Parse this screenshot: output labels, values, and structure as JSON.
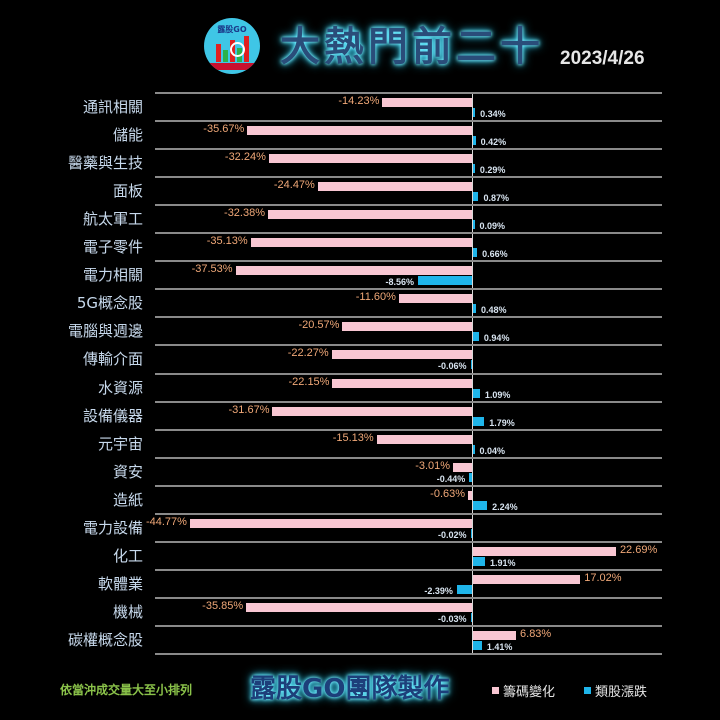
{
  "header": {
    "logo_text": "露股GO",
    "title": "大熱門前二十",
    "date": "2023/4/26"
  },
  "footer": {
    "note": "依當沖成交量大至小排列",
    "team": "露股GO團隊製作"
  },
  "legend": [
    {
      "label": "籌碼變化",
      "color": "#f8c6d2"
    },
    {
      "label": "類股漲跌",
      "color": "#1fb5ea"
    }
  ],
  "colors": {
    "background": "#000000",
    "chip_change": "#f8c6d2",
    "sector_change": "#1fb5ea",
    "chip_label": "#f0a878",
    "category_label": "#c7d9ec",
    "title_glow": "#4fe3ff"
  },
  "chart_data": {
    "type": "bar",
    "orientation": "horizontal",
    "title": "大熱門前二十",
    "subtitle": "2023/4/26",
    "xlabel": "",
    "ylabel": "",
    "xlim": [
      -45,
      30
    ],
    "grid": true,
    "legend_position": "bottom-right",
    "categories": [
      "通訊相關",
      "儲能",
      "醫藥與生技",
      "面板",
      "航太軍工",
      "電子零件",
      "電力相關",
      "5G概念股",
      "電腦與週邊",
      "傳輸介面",
      "水資源",
      "設備儀器",
      "元宇宙",
      "資安",
      "造紙",
      "電力設備",
      "化工",
      "軟體業",
      "機械",
      "碳權概念股"
    ],
    "series": [
      {
        "name": "籌碼變化",
        "values": [
          -14.23,
          -35.67,
          -32.24,
          -24.47,
          -32.38,
          -35.13,
          -37.53,
          -11.6,
          -20.57,
          -22.27,
          -22.15,
          -31.67,
          -15.13,
          -3.01,
          -0.63,
          -44.77,
          22.69,
          17.02,
          -35.85,
          6.83
        ],
        "labels": [
          "-14.23%",
          "-35.67%",
          "-32.24%",
          "-24.47%",
          "-32.38%",
          "-35.13%",
          "-37.53%",
          "-11.60%",
          "-20.57%",
          "-22.27%",
          "-22.15%",
          "-31.67%",
          "-15.13%",
          "-3.01%",
          "-0.63%",
          "-44.77%",
          "22.69%",
          "17.02%",
          "-35.85%",
          "6.83%"
        ]
      },
      {
        "name": "類股漲跌",
        "values": [
          0.34,
          0.42,
          0.29,
          0.87,
          0.09,
          0.66,
          -8.56,
          0.48,
          0.94,
          -0.06,
          1.09,
          1.79,
          0.04,
          -0.44,
          2.24,
          -0.02,
          1.91,
          -2.39,
          -0.03,
          1.41
        ],
        "labels": [
          "0.34%",
          "0.42%",
          "0.29%",
          "0.87%",
          "0.09%",
          "0.66%",
          "-8.56%",
          "0.48%",
          "0.94%",
          "-0.06%",
          "1.09%",
          "1.79%",
          "0.04%",
          "-0.44%",
          "2.24%",
          "-0.02%",
          "1.91%",
          "-2.39%",
          "-0.03%",
          "1.41%"
        ]
      }
    ]
  }
}
